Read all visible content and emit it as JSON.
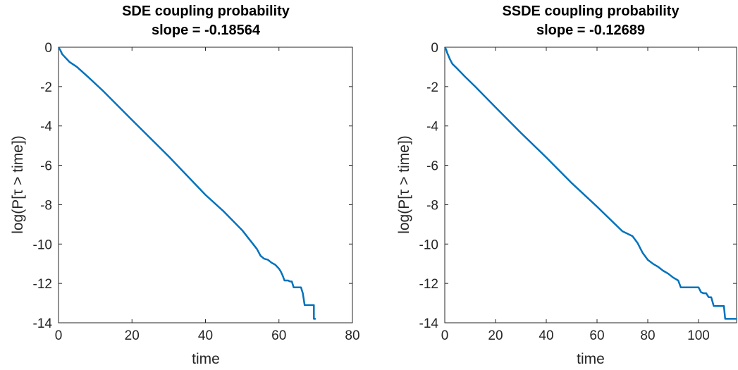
{
  "chart_data": [
    {
      "type": "line",
      "title": "SDE coupling probability",
      "subtitle": "slope = -0.18564",
      "xlabel": "time",
      "ylabel": "log(P[τ > time])",
      "xlim": [
        0,
        80
      ],
      "ylim": [
        -14,
        0
      ],
      "xticks": [
        "0",
        "20",
        "40",
        "60",
        "80"
      ],
      "yticks": [
        "0",
        "-2",
        "-4",
        "-6",
        "-8",
        "-10",
        "-12",
        "-14"
      ],
      "grid": false,
      "series": [
        {
          "color": "#0072BD",
          "x": [
            0,
            0.5,
            1,
            2,
            3,
            5,
            8,
            12,
            20,
            30,
            40,
            45,
            50,
            54,
            55,
            56,
            57,
            58,
            59,
            60,
            60.5,
            61,
            61.5,
            62,
            62.5,
            63,
            63.5,
            64,
            64.5,
            65,
            65.5,
            66,
            66.5,
            67,
            68,
            69,
            69.5,
            69.5,
            70
          ],
          "y": [
            0,
            -0.15,
            -0.35,
            -0.55,
            -0.75,
            -1.0,
            -1.5,
            -2.2,
            -3.7,
            -5.55,
            -7.5,
            -8.35,
            -9.3,
            -10.25,
            -10.6,
            -10.75,
            -10.8,
            -10.95,
            -11.05,
            -11.25,
            -11.4,
            -11.6,
            -11.85,
            -11.85,
            -11.85,
            -11.9,
            -11.9,
            -12.2,
            -12.2,
            -12.2,
            -12.2,
            -12.2,
            -12.5,
            -13.1,
            -13.1,
            -13.1,
            -13.1,
            -13.8,
            -13.8
          ]
        }
      ]
    },
    {
      "type": "line",
      "title": "SSDE coupling probability",
      "subtitle": "slope = -0.12689",
      "xlabel": "time",
      "ylabel": "log(P[τ > time])",
      "xlim": [
        0,
        115
      ],
      "ylim": [
        -14,
        0
      ],
      "xticks": [
        "0",
        "20",
        "40",
        "60",
        "80",
        "100"
      ],
      "yticks": [
        "0",
        "-2",
        "-4",
        "-6",
        "-8",
        "-10",
        "-12",
        "-14"
      ],
      "grid": false,
      "series": [
        {
          "color": "#0072BD",
          "x": [
            0,
            0.5,
            1,
            2,
            3,
            5,
            8,
            12,
            20,
            30,
            40,
            50,
            60,
            70,
            74,
            76,
            78,
            80,
            82,
            84,
            86,
            88,
            90,
            92,
            93,
            95,
            97,
            99,
            100,
            101,
            102,
            103,
            104,
            105,
            106,
            108,
            109,
            110,
            110.5,
            111,
            115
          ],
          "y": [
            0,
            -0.1,
            -0.3,
            -0.6,
            -0.85,
            -1.1,
            -1.5,
            -2.0,
            -3.05,
            -4.35,
            -5.6,
            -6.9,
            -8.1,
            -9.35,
            -9.6,
            -9.95,
            -10.45,
            -10.8,
            -11.0,
            -11.15,
            -11.35,
            -11.5,
            -11.7,
            -11.85,
            -12.2,
            -12.2,
            -12.2,
            -12.2,
            -12.2,
            -12.45,
            -12.5,
            -12.5,
            -12.7,
            -12.7,
            -13.15,
            -13.15,
            -13.15,
            -13.15,
            -13.8,
            -13.8,
            -13.8
          ]
        }
      ]
    }
  ]
}
